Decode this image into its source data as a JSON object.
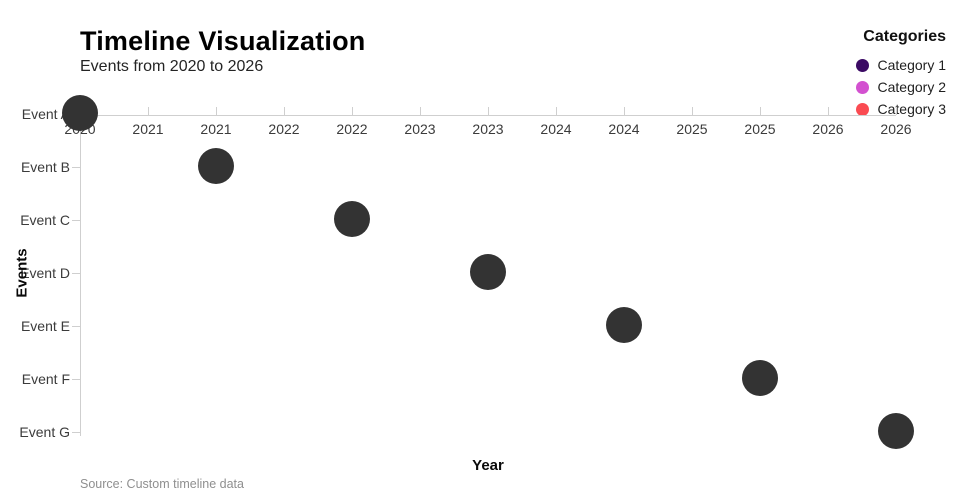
{
  "chart_data": {
    "type": "scatter",
    "title": "Timeline Visualization",
    "subtitle": "Events from 2020 to 2026",
    "xlabel": "Year",
    "ylabel": "Events",
    "source": "Source: Custom timeline data",
    "x_range": [
      2020,
      2026
    ],
    "x_tick_labels": [
      "2020",
      "2021",
      "2021",
      "2022",
      "2022",
      "2023",
      "2023",
      "2024",
      "2024",
      "2025",
      "2025",
      "2026",
      "2026"
    ],
    "y_categories": [
      "Event A",
      "Event B",
      "Event C",
      "Event D",
      "Event E",
      "Event F",
      "Event G"
    ],
    "points": [
      {
        "event": "Event A",
        "year": 2020
      },
      {
        "event": "Event B",
        "year": 2021
      },
      {
        "event": "Event C",
        "year": 2022
      },
      {
        "event": "Event D",
        "year": 2023
      },
      {
        "event": "Event E",
        "year": 2024
      },
      {
        "event": "Event F",
        "year": 2025
      },
      {
        "event": "Event G",
        "year": 2026
      }
    ],
    "point_color": "#333333",
    "axis_color": "#cfcfcf",
    "legend": {
      "title": "Categories",
      "entries": [
        {
          "label": "Category 1",
          "color": "#3b0a64"
        },
        {
          "label": "Category 2",
          "color": "#d351d0"
        },
        {
          "label": "Category 3",
          "color": "#fa4b52"
        }
      ]
    },
    "legend_position": "top-right",
    "grid": false
  }
}
